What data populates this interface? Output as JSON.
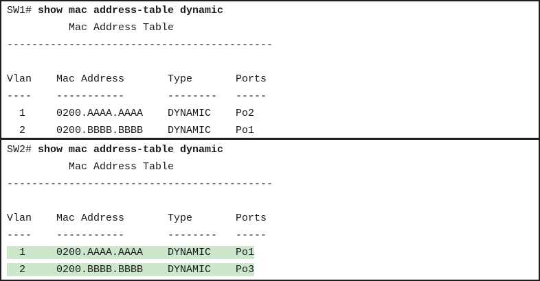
{
  "figure": {
    "kind": "cli-console-output",
    "colors": {
      "text": "#1a1a1a",
      "border": "#1f1f1f",
      "background": "#ffffff",
      "row_highlight": "#cde7cd"
    }
  },
  "panels": [
    {
      "device": "SW1",
      "prompt": "SW1#",
      "command": "show mac address-table dynamic",
      "table_title": "Mac Address Table",
      "separator": "-------------------------------------------",
      "columns": {
        "vlan": "Vlan",
        "mac": "Mac Address",
        "type": "Type",
        "ports": "Ports"
      },
      "underlines": {
        "vlan": "----",
        "mac": "-----------",
        "type": "--------",
        "ports": "-----"
      },
      "rows": [
        {
          "vlan": "1",
          "mac": "0200.AAAA.AAAA",
          "type": "DYNAMIC",
          "ports": "Po2",
          "highlighted": false
        },
        {
          "vlan": "2",
          "mac": "0200.BBBB.BBBB",
          "type": "DYNAMIC",
          "ports": "Po1",
          "highlighted": false
        }
      ]
    },
    {
      "device": "SW2",
      "prompt": "SW2#",
      "command": "show mac address-table dynamic",
      "table_title": "Mac Address Table",
      "separator": "-------------------------------------------",
      "columns": {
        "vlan": "Vlan",
        "mac": "Mac Address",
        "type": "Type",
        "ports": "Ports"
      },
      "underlines": {
        "vlan": "----",
        "mac": "-----------",
        "type": "--------",
        "ports": "-----"
      },
      "rows": [
        {
          "vlan": "1",
          "mac": "0200.AAAA.AAAA",
          "type": "DYNAMIC",
          "ports": "Po1",
          "highlighted": true
        },
        {
          "vlan": "2",
          "mac": "0200.BBBB.BBBB",
          "type": "DYNAMIC",
          "ports": "Po3",
          "highlighted": true
        }
      ]
    }
  ]
}
